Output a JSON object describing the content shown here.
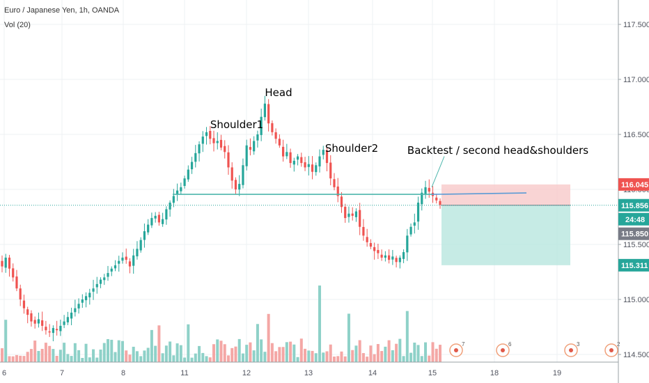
{
  "chart_data": {
    "type": "candlestick",
    "title": "Euro / Japanese Yen, 1h, OANDA",
    "volume_label": "Vol (20)",
    "y_axis": {
      "range": [
        114.46,
        117.58
      ],
      "tick_labels": [
        "117.500",
        "117.000",
        "116.500",
        "116.000",
        "115.500",
        "115.000",
        "114.500"
      ],
      "ticks": [
        117.5,
        117.0,
        116.5,
        116.0,
        115.5,
        115.0,
        114.5
      ]
    },
    "x_axis": {
      "tick_labels": [
        "6",
        "7",
        "8",
        "11",
        "12",
        "13",
        "14",
        "15",
        "18",
        "19"
      ]
    },
    "grid": true,
    "colors": {
      "up": "#26a69a",
      "down": "#ef5350",
      "neckline": "#4db6ac",
      "stop_zone": "#f8c9c9",
      "target_zone": "#b8e6df"
    },
    "price_badges": {
      "entry": {
        "label": "116.045",
        "value": 116.045,
        "color": "#ef5350"
      },
      "last": {
        "label": "115.856",
        "value": 115.856,
        "color": "#26a69a"
      },
      "countdown": {
        "label": "24:48",
        "color": "#26a69a"
      },
      "prev": {
        "label": "115.850",
        "value": 115.85,
        "color": "#787b86"
      },
      "target": {
        "label": "115.311",
        "value": 115.311,
        "color": "#26a69a"
      }
    },
    "annotations": [
      {
        "text": "Head",
        "price": 116.82
      },
      {
        "text": "Shoulder1",
        "price": 116.55
      },
      {
        "text": "Shoulder2",
        "price": 116.37
      },
      {
        "text": "Backtest / second head&shoulders",
        "price": 116.37
      }
    ],
    "neckline_price": 115.955,
    "position": {
      "entry": 115.856,
      "stop": 116.045,
      "target": 115.311
    },
    "events": [
      {
        "label": "7"
      },
      {
        "label": "6"
      },
      {
        "label": "3"
      },
      {
        "label": "2"
      }
    ],
    "series_closes": [
      115.3,
      115.38,
      115.28,
      115.2,
      115.1,
      115.0,
      114.92,
      114.86,
      114.8,
      114.78,
      114.82,
      114.76,
      114.72,
      114.7,
      114.74,
      114.72,
      114.76,
      114.8,
      114.84,
      114.88,
      114.92,
      114.96,
      115.0,
      115.03,
      115.06,
      115.1,
      115.14,
      115.18,
      115.2,
      115.24,
      115.28,
      115.31,
      115.35,
      115.38,
      115.36,
      115.3,
      115.4,
      115.46,
      115.54,
      115.62,
      115.68,
      115.74,
      115.76,
      115.7,
      115.73,
      115.82,
      115.88,
      115.94,
      115.99,
      116.02,
      116.1,
      116.18,
      116.25,
      116.33,
      116.41,
      116.48,
      116.52,
      116.46,
      116.42,
      116.44,
      116.38,
      116.34,
      116.2,
      116.08,
      116.0,
      116.05,
      116.22,
      116.4,
      116.36,
      116.44,
      116.5,
      116.66,
      116.78,
      116.6,
      116.52,
      116.46,
      116.4,
      116.3,
      116.34,
      116.24,
      116.26,
      116.3,
      116.24,
      116.2,
      116.23,
      116.16,
      116.22,
      116.3,
      116.36,
      116.24,
      116.1,
      116.02,
      115.94,
      115.84,
      115.74,
      115.78,
      115.76,
      115.8,
      115.66,
      115.58,
      115.52,
      115.48,
      115.44,
      115.42,
      115.38,
      115.4,
      115.36,
      115.39,
      115.34,
      115.38,
      115.43,
      115.58,
      115.66,
      115.7,
      115.88,
      115.97,
      116.02,
      115.98,
      115.94,
      115.9,
      115.86
    ]
  }
}
